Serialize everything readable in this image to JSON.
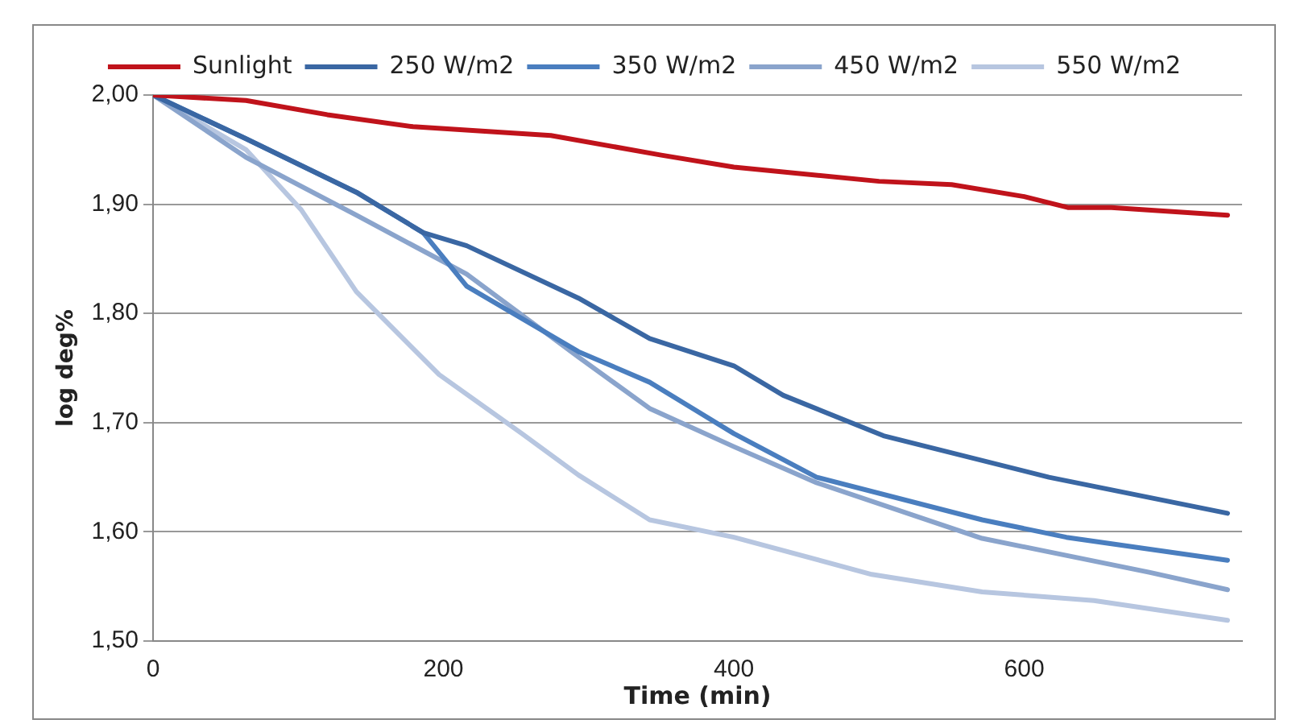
{
  "chart_data": {
    "type": "line",
    "xlabel": "Time (min)",
    "ylabel": "log deg%",
    "xlim": [
      0,
      750
    ],
    "xticks": [
      0,
      200,
      400,
      600
    ],
    "ylim": [
      1.5,
      2.0
    ],
    "yticks": [
      {
        "value": 1.5,
        "label": "1,50"
      },
      {
        "value": 1.6,
        "label": "1,60"
      },
      {
        "value": 1.7,
        "label": "1,70"
      },
      {
        "value": 1.8,
        "label": "1,80"
      },
      {
        "value": 1.9,
        "label": "1,90"
      },
      {
        "value": 2.0,
        "label": "2,00"
      }
    ],
    "grid": "y",
    "legend": "top",
    "marker": "none",
    "line_style": "solid",
    "series": [
      {
        "name": "Sunlight",
        "color": "#c0131b",
        "x": [
          0,
          64,
          120,
          179,
          274,
          350,
          400,
          500,
          550,
          600,
          630,
          660,
          740
        ],
        "values": [
          2.0,
          1.995,
          1.982,
          1.971,
          1.963,
          1.945,
          1.934,
          1.921,
          1.918,
          1.907,
          1.897,
          1.897,
          1.89
        ]
      },
      {
        "name": "250 W/m2",
        "color": "#3a67a3",
        "x": [
          0,
          64,
          140,
          186,
          216,
          293,
          342,
          400,
          434,
          503,
          617,
          740
        ],
        "values": [
          2.0,
          1.96,
          1.911,
          1.874,
          1.862,
          1.814,
          1.777,
          1.752,
          1.725,
          1.688,
          1.65,
          1.617
        ]
      },
      {
        "name": "350 W/m2",
        "color": "#4a7ebf",
        "x": [
          0,
          64,
          140,
          186,
          216,
          293,
          342,
          400,
          457,
          571,
          629,
          740
        ],
        "values": [
          2.0,
          1.96,
          1.911,
          1.874,
          1.825,
          1.765,
          1.737,
          1.69,
          1.65,
          1.611,
          1.595,
          1.574
        ]
      },
      {
        "name": "450 W/m2",
        "color": "#8aa4cc",
        "x": [
          0,
          64,
          140,
          216,
          293,
          342,
          400,
          457,
          571,
          686,
          740
        ],
        "values": [
          2.0,
          1.943,
          1.89,
          1.836,
          1.76,
          1.713,
          1.678,
          1.645,
          1.594,
          1.563,
          1.547
        ]
      },
      {
        "name": "550 W/m2",
        "color": "#b7c6e0",
        "x": [
          0,
          64,
          102,
          140,
          197,
          254,
          293,
          342,
          400,
          495,
          571,
          648,
          740
        ],
        "values": [
          2.0,
          1.95,
          1.895,
          1.82,
          1.744,
          1.69,
          1.652,
          1.611,
          1.595,
          1.561,
          1.545,
          1.537,
          1.519
        ]
      }
    ]
  }
}
